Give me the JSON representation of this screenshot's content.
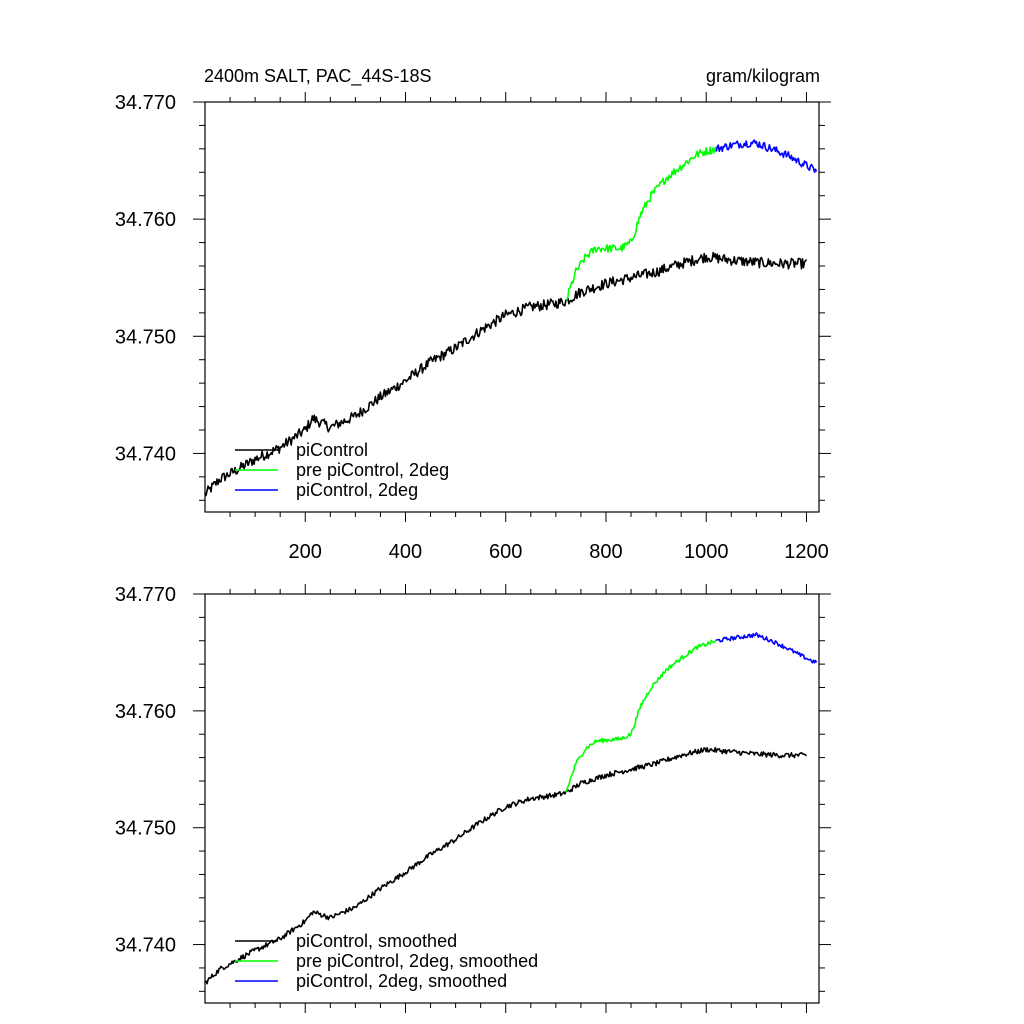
{
  "chart_data": [
    {
      "type": "line",
      "title": "2400m SALT, PAC_44S-18S",
      "units": "gram/kilogram",
      "xlabel": "",
      "ylabel": "",
      "xlim": [
        0,
        1225
      ],
      "ylim": [
        34.735,
        34.77
      ],
      "x_ticks": [
        200,
        400,
        600,
        800,
        1000,
        1200
      ],
      "x_tick_labels": [
        "200",
        "400",
        "600",
        "800",
        "1000",
        "1200"
      ],
      "y_ticks": [
        34.74,
        34.75,
        34.76,
        34.77
      ],
      "y_tick_labels": [
        "34.740",
        "34.750",
        "34.760",
        "34.770"
      ],
      "legend": [
        "piControl",
        "pre piControl, 2deg",
        "piControl, 2deg"
      ],
      "legend_position": "bottom-left",
      "series": [
        {
          "name": "piControl",
          "color": "#000000",
          "noise": 0.00045,
          "x": [
            0,
            30,
            60,
            100,
            150,
            200,
            215,
            250,
            300,
            350,
            400,
            450,
            500,
            550,
            600,
            650,
            700,
            720,
            750,
            800,
            850,
            900,
            950,
            1000,
            1050,
            1100,
            1150,
            1200
          ],
          "y": [
            34.7365,
            34.7378,
            34.7385,
            34.7395,
            34.7405,
            34.742,
            34.743,
            34.7422,
            34.7432,
            34.7448,
            34.7462,
            34.7478,
            34.749,
            34.7505,
            34.7518,
            34.7525,
            34.7528,
            34.753,
            34.7538,
            34.7545,
            34.755,
            34.7555,
            34.7562,
            34.7568,
            34.7565,
            34.7563,
            34.7562,
            34.7562
          ]
        },
        {
          "name": "pre piControl, 2deg",
          "color": "#00ff00",
          "noise": 0.00035,
          "x": [
            720,
            740,
            760,
            780,
            800,
            830,
            850,
            870,
            890,
            920,
            950,
            980,
            1000,
            1020
          ],
          "y": [
            34.753,
            34.7555,
            34.7568,
            34.7575,
            34.7575,
            34.7575,
            34.758,
            34.7605,
            34.762,
            34.7635,
            34.7645,
            34.7655,
            34.7658,
            34.766
          ]
        },
        {
          "name": "piControl, 2deg",
          "color": "#0000ff",
          "noise": 0.00035,
          "x": [
            1020,
            1050,
            1080,
            1100,
            1130,
            1160,
            1190,
            1220
          ],
          "y": [
            34.766,
            34.7663,
            34.7665,
            34.7665,
            34.766,
            34.7655,
            34.7648,
            34.7641
          ]
        }
      ]
    },
    {
      "type": "line",
      "title": "",
      "xlabel": "",
      "ylabel": "",
      "xlim": [
        0,
        1225
      ],
      "ylim": [
        34.735,
        34.77
      ],
      "x_ticks": [
        200,
        400,
        600,
        800,
        1000,
        1200
      ],
      "x_tick_labels": [],
      "y_ticks": [
        34.74,
        34.75,
        34.76,
        34.77
      ],
      "y_tick_labels": [
        "34.740",
        "34.750",
        "34.760",
        "34.770"
      ],
      "legend": [
        "piControl, smoothed",
        "pre piControl, 2deg, smoothed",
        "piControl, 2deg, smoothed"
      ],
      "legend_position": "bottom-left",
      "series": [
        {
          "name": "piControl, smoothed",
          "color": "#000000",
          "noise": 0.00022,
          "x": [
            0,
            30,
            60,
            100,
            150,
            200,
            215,
            250,
            300,
            350,
            400,
            450,
            500,
            550,
            600,
            650,
            700,
            720,
            750,
            800,
            850,
            900,
            950,
            1000,
            1050,
            1100,
            1150,
            1200
          ],
          "y": [
            34.7367,
            34.7379,
            34.7386,
            34.7395,
            34.7405,
            34.742,
            34.7428,
            34.7423,
            34.7432,
            34.7448,
            34.7462,
            34.7477,
            34.749,
            34.7505,
            34.7518,
            34.7525,
            34.7528,
            34.753,
            34.7538,
            34.7545,
            34.755,
            34.7555,
            34.7562,
            34.7567,
            34.7565,
            34.7563,
            34.7562,
            34.7562
          ]
        },
        {
          "name": "pre piControl, 2deg, smoothed",
          "color": "#00ff00",
          "noise": 0.00018,
          "x": [
            720,
            740,
            760,
            780,
            800,
            830,
            850,
            870,
            890,
            920,
            950,
            980,
            1000,
            1020
          ],
          "y": [
            34.753,
            34.7555,
            34.7568,
            34.7574,
            34.7575,
            34.7576,
            34.758,
            34.7605,
            34.762,
            34.7635,
            34.7645,
            34.7654,
            34.7657,
            34.766
          ]
        },
        {
          "name": "piControl, 2deg, smoothed",
          "color": "#0000ff",
          "noise": 0.00018,
          "x": [
            1020,
            1050,
            1080,
            1100,
            1130,
            1160,
            1190,
            1220
          ],
          "y": [
            34.766,
            34.7662,
            34.7664,
            34.7665,
            34.766,
            34.7654,
            34.7647,
            34.7641
          ]
        }
      ]
    }
  ]
}
